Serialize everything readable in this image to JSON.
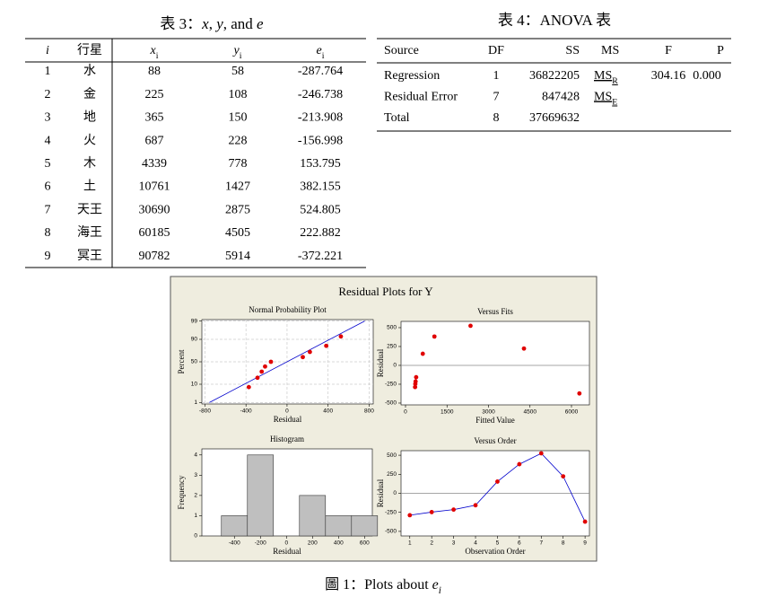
{
  "table3": {
    "title": [
      {
        "text": "表 3："
      },
      {
        "text": "x",
        "italic": true
      },
      {
        "text": ", "
      },
      {
        "text": "y",
        "italic": true
      },
      {
        "text": ", and "
      },
      {
        "text": "e",
        "italic": true
      }
    ],
    "headers": [
      {
        "text": "i",
        "italic": true
      },
      {
        "text": "行星"
      },
      {
        "text": "x",
        "sub": "i",
        "italic": true
      },
      {
        "text": "y",
        "sub": "i",
        "italic": true
      },
      {
        "text": "e",
        "sub": "i",
        "italic": true
      }
    ],
    "rows": [
      [
        "1",
        "水",
        "88",
        "58",
        "-287.764"
      ],
      [
        "2",
        "金",
        "225",
        "108",
        "-246.738"
      ],
      [
        "3",
        "地",
        "365",
        "150",
        "-213.908"
      ],
      [
        "4",
        "火",
        "687",
        "228",
        "-156.998"
      ],
      [
        "5",
        "木",
        "4339",
        "778",
        "153.795"
      ],
      [
        "6",
        "土",
        "10761",
        "1427",
        "382.155"
      ],
      [
        "7",
        "天王",
        "30690",
        "2875",
        "524.805"
      ],
      [
        "8",
        "海王",
        "60185",
        "4505",
        "222.882"
      ],
      [
        "9",
        "冥王",
        "90782",
        "5914",
        "-372.221"
      ]
    ]
  },
  "table4": {
    "title": "表 4：ANOVA 表",
    "headers": [
      "Source",
      "DF",
      "SS",
      "MS",
      "F",
      "P"
    ],
    "rows": [
      [
        "Regression",
        "1",
        "36822205",
        {
          "text": "MS",
          "sub": "R",
          "underline": true
        },
        "304.16",
        "0.000"
      ],
      [
        "Residual Error",
        "7",
        "847428",
        {
          "text": "MS",
          "sub": "E",
          "underline": true
        }
      ],
      [
        "Total",
        "8",
        "37669632"
      ]
    ]
  },
  "figure": {
    "title": "Residual Plots for Y",
    "caption": {
      "text": "圖 1：Plots about ",
      "var": "e",
      "sub": "i"
    },
    "plots": [
      {
        "type": "probability",
        "title": "Normal Probability Plot",
        "x_label": "Residual",
        "y_label": "Percent",
        "y_scale": "normal",
        "grid": true,
        "xlim": [
          -830,
          840
        ],
        "ylim": [
          0.8,
          99.2
        ],
        "xticks": [
          -800,
          -400,
          0,
          400,
          800
        ],
        "yticks": [
          1,
          10,
          50,
          90,
          99
        ],
        "x": [
          -372.221,
          -287.764,
          -246.738,
          -213.908,
          -156.998,
          153.795,
          222.882,
          382.155,
          524.805
        ],
        "values": [
          7.4,
          18.1,
          28.7,
          39.4,
          50,
          60.6,
          71.3,
          81.9,
          92.6
        ],
        "fit_line": {
          "x": [
            -757,
            757
          ],
          "y": [
            1,
            99
          ]
        },
        "color": "#e00000",
        "line_color": "#0000cc"
      },
      {
        "type": "scatter",
        "title": "Versus Fits",
        "x_label": "Fitted Value",
        "y_label": "Residual",
        "xlim": [
          -162,
          6649
        ],
        "ylim": [
          -524,
          583
        ],
        "xticks": [
          0,
          1500,
          3000,
          4500,
          6000
        ],
        "yticks": [
          -500,
          -250,
          0,
          250,
          500
        ],
        "reference_line": 0,
        "x": [
          345.764,
          354.738,
          363.908,
          384.998,
          624.205,
          1044.845,
          2350.195,
          4282.118,
          6286.221
        ],
        "values": [
          -287.764,
          -246.738,
          -213.908,
          -156.998,
          153.795,
          382.155,
          524.805,
          222.882,
          -372.221
        ],
        "color": "#e00000"
      },
      {
        "type": "histogram",
        "title": "Histogram",
        "x_label": "Residual",
        "y_label": "Frequency",
        "xlim": [
          -650,
          660
        ],
        "ylim": [
          0,
          4.3
        ],
        "xticks": [
          -400,
          -200,
          0,
          200,
          400,
          600
        ],
        "yticks": [
          0,
          1,
          2,
          3,
          4
        ],
        "bins": [
          -500,
          -300,
          -100,
          100,
          300,
          500,
          700
        ],
        "counts": [
          1,
          4,
          0,
          2,
          1,
          1
        ],
        "color": "#bfbfbf"
      },
      {
        "type": "line",
        "title": "Versus Order",
        "x_label": "Observation Order",
        "y_label": "Residual",
        "xlim": [
          0.6,
          9.2
        ],
        "ylim": [
          -560,
          560
        ],
        "xticks": [
          1,
          2,
          3,
          4,
          5,
          6,
          7,
          8,
          9
        ],
        "yticks": [
          -500,
          -250,
          0,
          250,
          500
        ],
        "reference_line": 0,
        "x": [
          1,
          2,
          3,
          4,
          5,
          6,
          7,
          8,
          9
        ],
        "values": [
          -287.764,
          -246.738,
          -213.908,
          -156.998,
          153.795,
          382.155,
          524.805,
          222.882,
          -372.221
        ],
        "color": "#e00000",
        "line_color": "#0000cc"
      }
    ]
  }
}
